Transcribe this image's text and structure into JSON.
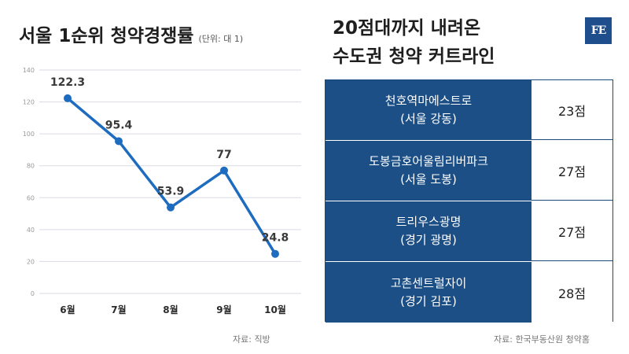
{
  "left": {
    "title": "서울 1순위 청약경쟁률",
    "unit": "(단위: 대 1)",
    "source": "자료: 직방"
  },
  "chart_data": {
    "type": "line",
    "categories": [
      "6월",
      "7월",
      "8월",
      "9월",
      "10월"
    ],
    "values": [
      122.3,
      95.4,
      53.9,
      77,
      24.8
    ],
    "value_labels": [
      "122.3",
      "95.4",
      "53.9",
      "77",
      "24.8"
    ],
    "yticks": [
      "0",
      "20",
      "40",
      "60",
      "80",
      "100",
      "120",
      "140"
    ],
    "ylim": [
      0,
      140
    ],
    "grid": true,
    "line_color": "#1e6cc0"
  },
  "right": {
    "title_line1": "20점대까지 내려온",
    "title_line2": "수도권 청약 커트라인",
    "logo": "FE",
    "rows": [
      {
        "name": "천호역마에스트로",
        "region": "(서울 강동)",
        "score": "23점"
      },
      {
        "name": "도봉금호어울림리버파크",
        "region": "(서울 도봉)",
        "score": "27점"
      },
      {
        "name": "트리우스광명",
        "region": "(경기 광명)",
        "score": "27점"
      },
      {
        "name": "고촌센트럴자이",
        "region": "(경기 김포)",
        "score": "28점"
      }
    ],
    "source": "자료: 한국부동산원 청약홈"
  }
}
